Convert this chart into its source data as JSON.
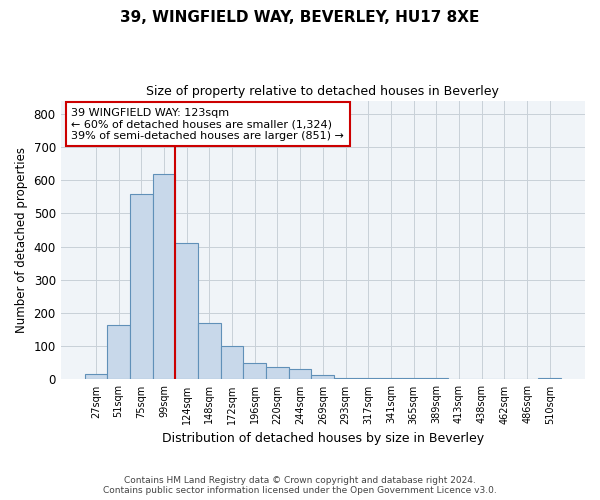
{
  "title_line1": "39, WINGFIELD WAY, BEVERLEY, HU17 8XE",
  "title_line2": "Size of property relative to detached houses in Beverley",
  "xlabel": "Distribution of detached houses by size in Beverley",
  "ylabel": "Number of detached properties",
  "footer_line1": "Contains HM Land Registry data © Crown copyright and database right 2024.",
  "footer_line2": "Contains public sector information licensed under the Open Government Licence v3.0.",
  "categories": [
    "27sqm",
    "51sqm",
    "75sqm",
    "99sqm",
    "124sqm",
    "148sqm",
    "172sqm",
    "196sqm",
    "220sqm",
    "244sqm",
    "269sqm",
    "293sqm",
    "317sqm",
    "341sqm",
    "365sqm",
    "389sqm",
    "413sqm",
    "438sqm",
    "462sqm",
    "486sqm",
    "510sqm"
  ],
  "values": [
    15,
    165,
    560,
    620,
    410,
    170,
    100,
    50,
    38,
    30,
    12,
    5,
    5,
    3,
    3,
    3,
    2,
    0,
    0,
    0,
    5
  ],
  "bar_color": "#c8d8ea",
  "bar_edge_color": "#6090b8",
  "property_bar_index": 4,
  "annotation_text_line1": "39 WINGFIELD WAY: 123sqm",
  "annotation_text_line2": "← 60% of detached houses are smaller (1,324)",
  "annotation_text_line3": "39% of semi-detached houses are larger (851) →",
  "annotation_box_color": "#ffffff",
  "annotation_box_edge_color": "#cc0000",
  "vline_color": "#cc0000",
  "grid_color": "#c8d0d8",
  "ylim": [
    0,
    840
  ],
  "yticks": [
    0,
    100,
    200,
    300,
    400,
    500,
    600,
    700,
    800
  ],
  "bg_color": "#ffffff",
  "plot_bg_color": "#f0f4f8"
}
